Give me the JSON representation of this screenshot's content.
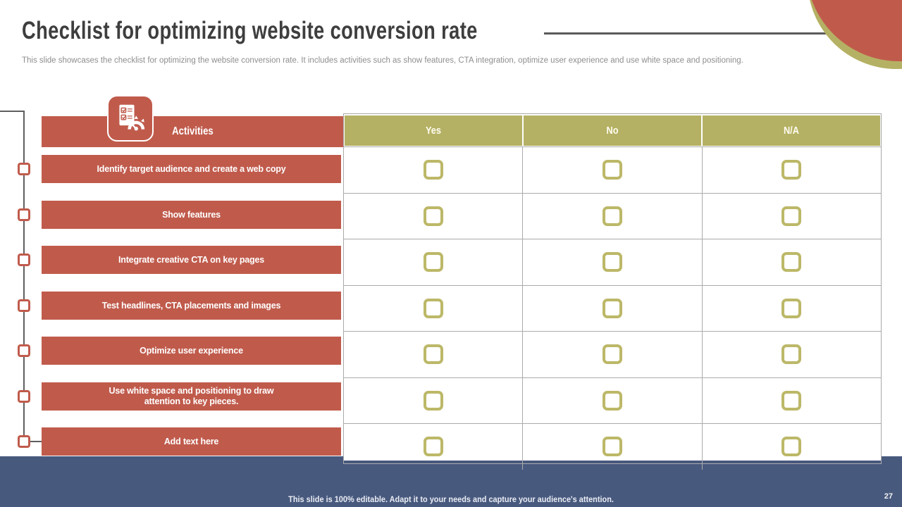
{
  "slide": {
    "title": "Checklist for optimizing website conversion rate",
    "subtitle": "This slide showcases the checklist for optimizing the website conversion rate. It includes activities such as show features, CTA integration, optimize user experience and use white space and positioning.",
    "footer_note": "This slide is 100% editable. Adapt it to your needs and capture your audience's attention.",
    "page_number": "27"
  },
  "table": {
    "activities_header": "Activities",
    "option_columns": [
      "Yes",
      "No",
      "N/A"
    ],
    "rows": [
      {
        "activity": "Identify target audience and create a web copy",
        "yes": false,
        "no": false,
        "na": false
      },
      {
        "activity": "Show features",
        "yes": false,
        "no": false,
        "na": false
      },
      {
        "activity": "Integrate creative CTA on key pages",
        "yes": false,
        "no": false,
        "na": false
      },
      {
        "activity": "Test headlines, CTA placements and images",
        "yes": false,
        "no": false,
        "na": false
      },
      {
        "activity": "Optimize user experience",
        "yes": false,
        "no": false,
        "na": false
      },
      {
        "activity": "Use white space and positioning to draw\nattention to key pieces.",
        "yes": false,
        "no": false,
        "na": false
      },
      {
        "activity": "Add text here",
        "yes": false,
        "no": false,
        "na": false
      }
    ]
  },
  "icons": {
    "activities_icon": "checklist-gauge-icon"
  },
  "colors": {
    "accent_red": "#C05B4C",
    "accent_olive": "#B5B164",
    "footer_blue": "#48597E",
    "grid_line": "#ABABAB",
    "title_text": "#3E3E3E",
    "subtitle_text": "#8E8E8E"
  }
}
